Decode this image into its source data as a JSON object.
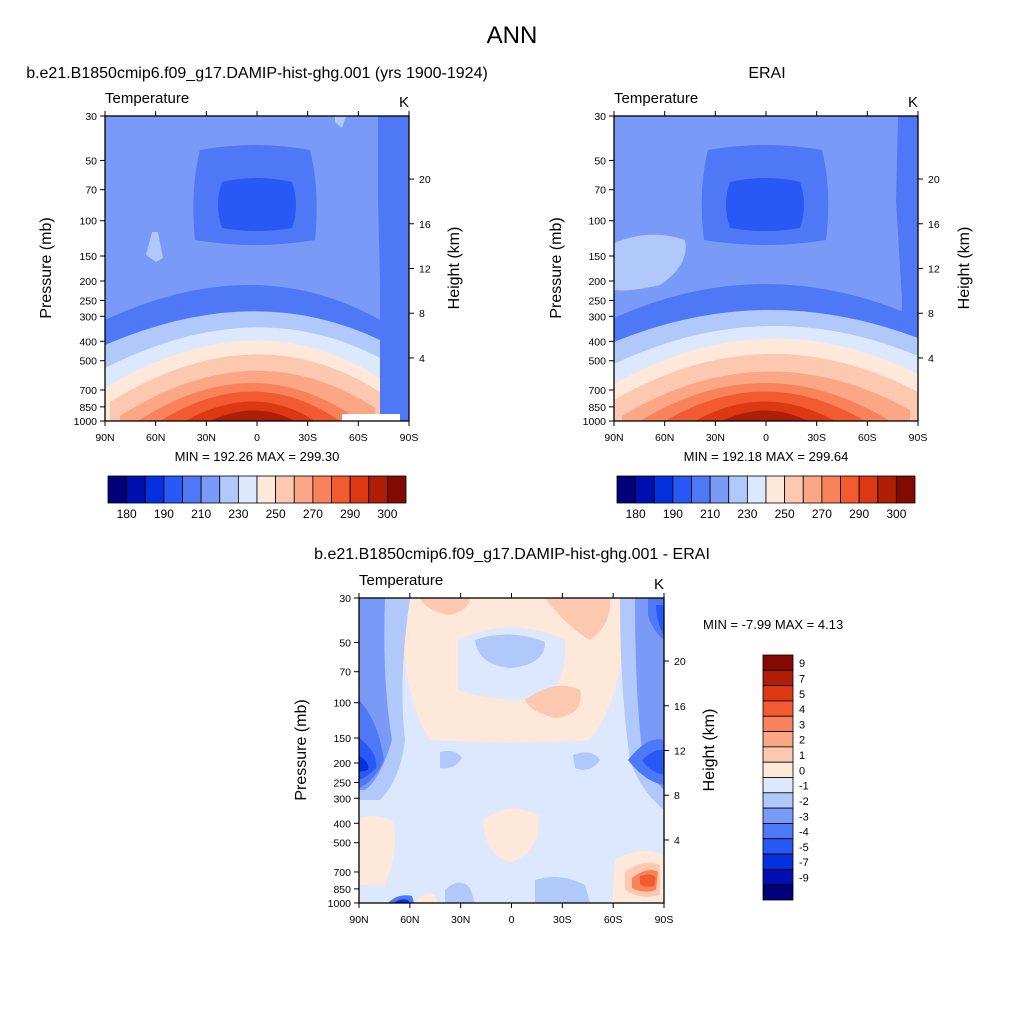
{
  "page": {
    "title": "ANN"
  },
  "chart_data": [
    {
      "type": "heatmap",
      "title": "b.e21.B1850cmip6.f09_g17.DAMIP-hist-ghg.001 (yrs 1900-1924)",
      "left_label": "Temperature",
      "right_label": "K",
      "ylabel": "Pressure (mb)",
      "y2label": "Height (km)",
      "xticks": [
        "90N",
        "60N",
        "30N",
        "0",
        "30S",
        "60S",
        "90S"
      ],
      "yticks": [
        30,
        50,
        70,
        100,
        150,
        200,
        250,
        300,
        400,
        500,
        700,
        850,
        1000
      ],
      "y2ticks": [
        4,
        8,
        12,
        16,
        20
      ],
      "stats": "MIN = 192.26  MAX = 299.30",
      "min": 192.26,
      "max": 299.3,
      "colorbar": {
        "orientation": "horizontal",
        "tick_labels": [
          "180",
          "190",
          "210",
          "230",
          "250",
          "270",
          "290",
          "300"
        ],
        "colors": [
          "#00007a",
          "#0010b0",
          "#0530e0",
          "#2858f5",
          "#4f78f6",
          "#7a9af8",
          "#b0c8fa",
          "#dce8fd",
          "#fde8da",
          "#fcc8b0",
          "#fba684",
          "#f8835a",
          "#f25a32",
          "#dc3814",
          "#b01e08",
          "#820a00"
        ]
      }
    },
    {
      "type": "heatmap",
      "title": "ERAI",
      "left_label": "Temperature",
      "right_label": "K",
      "ylabel": "Pressure (mb)",
      "y2label": "Height (km)",
      "xticks": [
        "90N",
        "60N",
        "30N",
        "0",
        "30S",
        "60S",
        "90S"
      ],
      "yticks": [
        30,
        50,
        70,
        100,
        150,
        200,
        250,
        300,
        400,
        500,
        700,
        850,
        1000
      ],
      "y2ticks": [
        4,
        8,
        12,
        16,
        20
      ],
      "stats": "MIN = 192.18  MAX = 299.64",
      "min": 192.18,
      "max": 299.64,
      "colorbar": {
        "orientation": "horizontal",
        "tick_labels": [
          "180",
          "190",
          "210",
          "230",
          "250",
          "270",
          "290",
          "300"
        ],
        "colors": [
          "#00007a",
          "#0010b0",
          "#0530e0",
          "#2858f5",
          "#4f78f6",
          "#7a9af8",
          "#b0c8fa",
          "#dce8fd",
          "#fde8da",
          "#fcc8b0",
          "#fba684",
          "#f8835a",
          "#f25a32",
          "#dc3814",
          "#b01e08",
          "#820a00"
        ]
      }
    },
    {
      "type": "heatmap",
      "title": "b.e21.B1850cmip6.f09_g17.DAMIP-hist-ghg.001 - ERAI",
      "left_label": "Temperature",
      "right_label": "K",
      "ylabel": "Pressure (mb)",
      "y2label": "Height (km)",
      "xticks": [
        "90N",
        "60N",
        "30N",
        "0",
        "30S",
        "60S",
        "90S"
      ],
      "yticks": [
        30,
        50,
        70,
        100,
        150,
        200,
        250,
        300,
        400,
        500,
        700,
        850,
        1000
      ],
      "y2ticks": [
        4,
        8,
        12,
        16,
        20
      ],
      "stats": "MIN =  -7.99  MAX =   4.13",
      "min": -7.99,
      "max": 4.13,
      "colorbar": {
        "orientation": "vertical",
        "tick_labels": [
          "9",
          "7",
          "5",
          "4",
          "3",
          "2",
          "1",
          "0",
          "-1",
          "-2",
          "-3",
          "-4",
          "-5",
          "-7",
          "-9"
        ],
        "colors": [
          "#820a00",
          "#b01e08",
          "#dc3814",
          "#f25a32",
          "#f8835a",
          "#fba684",
          "#fcc8b0",
          "#fde8da",
          "#dce8fd",
          "#b0c8fa",
          "#7a9af8",
          "#4f78f6",
          "#2858f5",
          "#0530e0",
          "#0010b0",
          "#00007a"
        ]
      }
    }
  ]
}
